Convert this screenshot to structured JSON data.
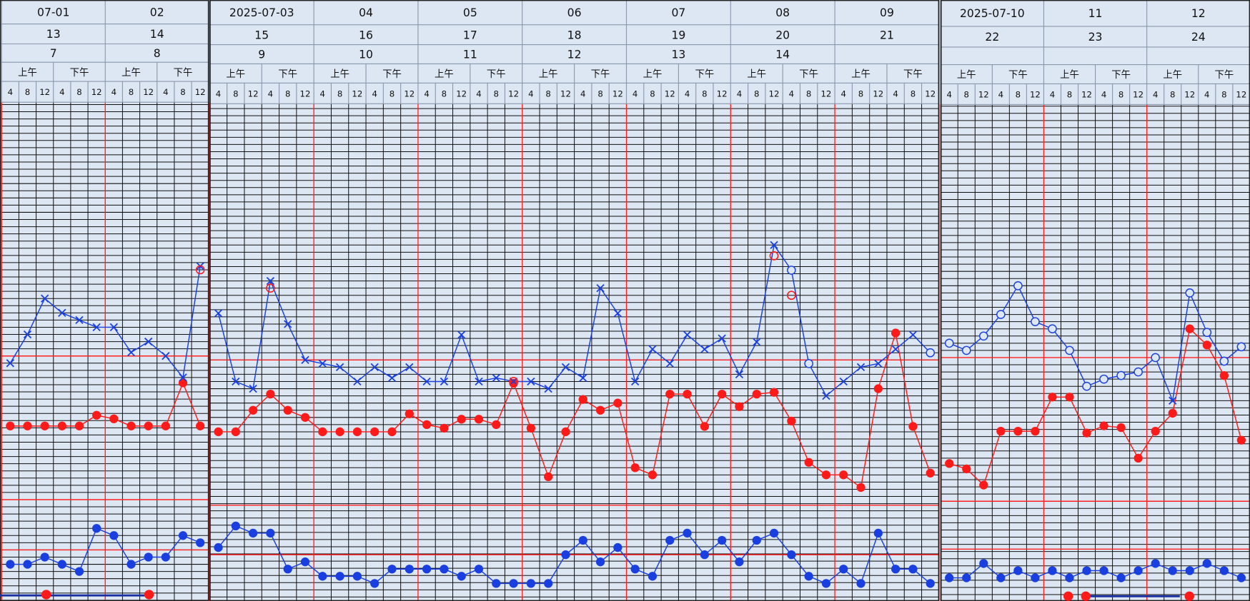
{
  "chart_data": {
    "type": "line",
    "temp_ref": 37,
    "pulse_ref": 100,
    "resp_ref": 20,
    "temp_color": "#1a3fe0",
    "pulse_color": "#ff1a1a",
    "resp_color": "#1a3fe0",
    "hours": [
      "4",
      "8",
      "12",
      "4",
      "8",
      "12"
    ],
    "halves": [
      "上午",
      "下午"
    ],
    "panels": [
      {
        "dates": [
          "07-01",
          "02"
        ],
        "hospital_days": [
          "13",
          "14"
        ],
        "postop_days": [
          "7",
          "8"
        ],
        "temperature": [
          36.8,
          37.6,
          38.6,
          38.2,
          38.0,
          37.8,
          37.8,
          37.1,
          37.4,
          37.0,
          36.4,
          39.5
        ],
        "temperature_symbols": [
          "x",
          "x",
          "x",
          "x",
          "x",
          "x",
          "x",
          "x",
          "x",
          "x",
          "x",
          "x"
        ],
        "retest": [
          null,
          null,
          null,
          null,
          null,
          null,
          null,
          null,
          null,
          null,
          null,
          39.4
        ],
        "pulse": [
          61,
          61,
          61,
          61,
          61,
          67,
          65,
          61,
          61,
          61,
          85,
          61
        ],
        "respiration": [
          18,
          18,
          19,
          18,
          17,
          23,
          22,
          18,
          19,
          19,
          22,
          21
        ]
      },
      {
        "dates": [
          "2025-07-03",
          "04",
          "05",
          "06",
          "07",
          "08",
          "09"
        ],
        "hospital_days": [
          "15",
          "16",
          "17",
          "18",
          "19",
          "20",
          "21"
        ],
        "postop_days": [
          "9",
          "10",
          "11",
          "12",
          "13",
          "14",
          null
        ],
        "temperature": [
          38.3,
          36.4,
          36.2,
          39.2,
          38.0,
          37.0,
          36.9,
          36.8,
          36.4,
          36.8,
          36.5,
          36.8,
          36.4,
          36.4,
          37.7,
          36.4,
          36.5,
          36.4,
          36.4,
          36.2,
          36.8,
          36.5,
          39.0,
          38.3,
          36.4,
          37.3,
          36.9,
          37.7,
          37.3,
          37.6,
          36.6,
          37.5,
          40.2,
          39.5,
          36.9,
          36.0,
          36.4,
          36.8,
          36.9,
          37.3,
          37.7,
          37.2
        ],
        "temperature_symbols": [
          "x",
          "x",
          "x",
          "x",
          "x",
          "x",
          "x",
          "x",
          "x",
          "x",
          "x",
          "x",
          "x",
          "x",
          "x",
          "x",
          "x",
          "x",
          "x",
          "x",
          "x",
          "x",
          "x",
          "x",
          "x",
          "x",
          "x",
          "x",
          "x",
          "x",
          "x",
          "x",
          "x",
          "o",
          "o",
          "x",
          "x",
          "x",
          "x",
          "x",
          "x",
          "o"
        ],
        "retest": [
          null,
          null,
          null,
          39.0,
          null,
          null,
          null,
          null,
          null,
          null,
          null,
          null,
          null,
          null,
          null,
          null,
          null,
          36.4,
          null,
          null,
          null,
          null,
          null,
          null,
          null,
          null,
          null,
          null,
          null,
          null,
          null,
          null,
          39.9,
          38.8,
          null,
          null,
          null,
          null,
          null,
          null,
          null,
          null
        ],
        "pulse": [
          60,
          60,
          72,
          81,
          72,
          68,
          60,
          60,
          60,
          60,
          60,
          70,
          64,
          62,
          67,
          67,
          64,
          87,
          62,
          35,
          60,
          78,
          72,
          76,
          40,
          36,
          81,
          81,
          63,
          81,
          74,
          81,
          82,
          66,
          43,
          36,
          36,
          29,
          84,
          115,
          63,
          37
        ],
        "respiration": [
          21,
          24,
          23,
          23,
          18,
          19,
          17,
          17,
          17,
          16,
          18,
          18,
          18,
          18,
          17,
          18,
          16,
          16,
          16,
          16,
          20,
          22,
          19,
          21,
          18,
          17,
          22,
          23,
          20,
          22,
          19,
          22,
          23,
          20,
          17,
          16,
          18,
          16,
          23,
          18,
          18,
          16
        ]
      },
      {
        "dates": [
          "2025-07-10",
          "11",
          "12"
        ],
        "hospital_days": [
          "22",
          "23",
          "24"
        ],
        "postop_days": [
          null,
          null,
          null
        ],
        "temperature": [
          37.4,
          37.2,
          37.6,
          38.2,
          39.0,
          38.0,
          37.8,
          37.2,
          36.2,
          36.4,
          36.5,
          36.6,
          37.0,
          35.8,
          38.8,
          37.7,
          36.9,
          37.3
        ],
        "temperature_symbols": [
          "o",
          "o",
          "o",
          "o",
          "o",
          "o",
          "o",
          "o",
          "o",
          "o",
          "o",
          "o",
          "o",
          "x",
          "o",
          "o",
          "o",
          "o"
        ],
        "retest": [
          null,
          null,
          null,
          null,
          null,
          null,
          null,
          null,
          null,
          null,
          null,
          null,
          null,
          null,
          null,
          null,
          null,
          null
        ],
        "pulse": [
          41,
          38,
          29,
          59,
          59,
          59,
          78,
          78,
          58,
          62,
          61,
          44,
          59,
          69,
          116,
          107,
          90,
          54
        ],
        "respiration": [
          16,
          16,
          18,
          16,
          17,
          16,
          17,
          16,
          17,
          17,
          16,
          17,
          18,
          17,
          17,
          18,
          17,
          16
        ]
      }
    ]
  }
}
